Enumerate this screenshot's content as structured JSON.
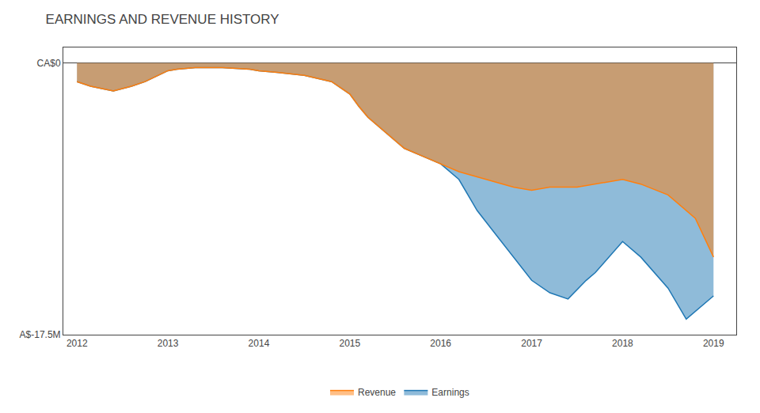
{
  "chart_data": {
    "type": "area",
    "title": "EARNINGS AND REVENUE HISTORY",
    "series": [
      {
        "name": "Revenue",
        "x": [
          2012.0,
          2012.15,
          2012.4,
          2012.6,
          2012.75,
          2012.9,
          2013.0,
          2013.1,
          2013.3,
          2013.6,
          2013.9,
          2014.0,
          2014.2,
          2014.5,
          2014.8,
          2015.0,
          2015.1,
          2015.2,
          2015.4,
          2015.6,
          2015.8,
          2016.0,
          2016.2,
          2016.5,
          2016.8,
          2017.0,
          2017.2,
          2017.5,
          2017.7,
          2018.0,
          2018.2,
          2018.5,
          2018.8,
          2019.0
        ],
        "values": [
          -1.2,
          -1.5,
          -1.8,
          -1.5,
          -1.2,
          -0.8,
          -0.5,
          -0.4,
          -0.3,
          -0.3,
          -0.4,
          -0.5,
          -0.6,
          -0.8,
          -1.2,
          -2.0,
          -2.8,
          -3.5,
          -4.5,
          -5.5,
          -6.0,
          -6.5,
          -7.0,
          -7.5,
          -8.0,
          -8.2,
          -8.0,
          -8.0,
          -7.8,
          -7.5,
          -7.8,
          -8.5,
          -10.0,
          -12.5
        ]
      },
      {
        "name": "Earnings",
        "x": [
          2012.0,
          2012.15,
          2012.4,
          2012.6,
          2012.75,
          2012.9,
          2013.0,
          2013.1,
          2013.3,
          2013.6,
          2013.9,
          2014.0,
          2014.2,
          2014.5,
          2014.8,
          2015.0,
          2015.1,
          2015.2,
          2015.4,
          2015.6,
          2015.8,
          2016.0,
          2016.2,
          2016.4,
          2016.6,
          2016.8,
          2017.0,
          2017.2,
          2017.4,
          2017.6,
          2017.7,
          2018.0,
          2018.2,
          2018.5,
          2018.7,
          2019.0
        ],
        "values": [
          -1.2,
          -1.5,
          -1.8,
          -1.5,
          -1.2,
          -0.8,
          -0.5,
          -0.4,
          -0.3,
          -0.3,
          -0.4,
          -0.5,
          -0.6,
          -0.8,
          -1.2,
          -2.0,
          -2.8,
          -3.5,
          -4.5,
          -5.5,
          -6.0,
          -6.5,
          -7.5,
          -9.5,
          -11.0,
          -12.5,
          -14.0,
          -14.8,
          -15.2,
          -14.0,
          -13.5,
          -11.5,
          -12.5,
          -14.5,
          -16.5,
          -15.0
        ]
      }
    ],
    "xlim": [
      2011.85,
      2019.25
    ],
    "xticks": [
      2012,
      2013,
      2014,
      2015,
      2016,
      2017,
      2018,
      2019
    ],
    "ylim": [
      -17.5,
      1.0
    ],
    "yticks": [
      {
        "value": 0,
        "label": "CA$0"
      },
      {
        "value": -17.5,
        "label": "A$-17.5M"
      }
    ],
    "grid": false,
    "legend": "bottom"
  }
}
